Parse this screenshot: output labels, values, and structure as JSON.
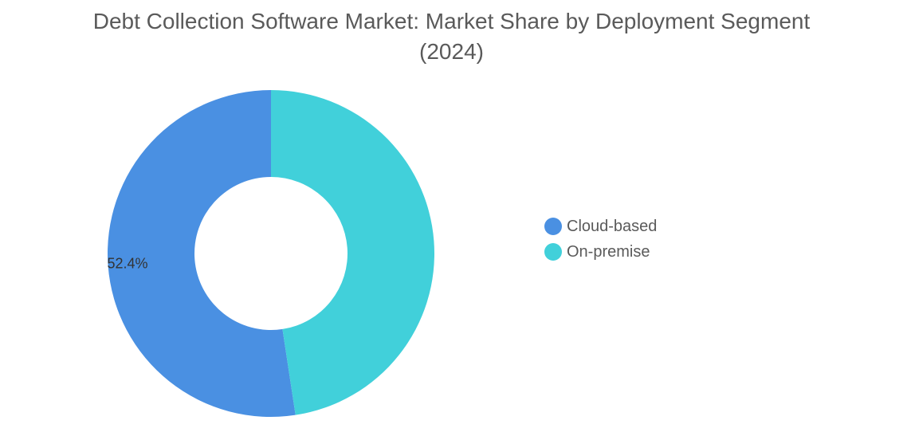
{
  "chart_data": {
    "type": "pie",
    "title": "Debt Collection Software Market: Market Share by Deployment Segment",
    "subtitle": "(2024)",
    "donut": true,
    "categories": [
      "Cloud-based",
      "On-premise"
    ],
    "values": [
      52.4,
      47.6
    ],
    "data_labels": [
      "52.4%",
      ""
    ],
    "colors": [
      "#4a90e2",
      "#41d0da"
    ],
    "start_angle_deg": 90,
    "direction": "counterclockwise",
    "legend_position": "right"
  }
}
